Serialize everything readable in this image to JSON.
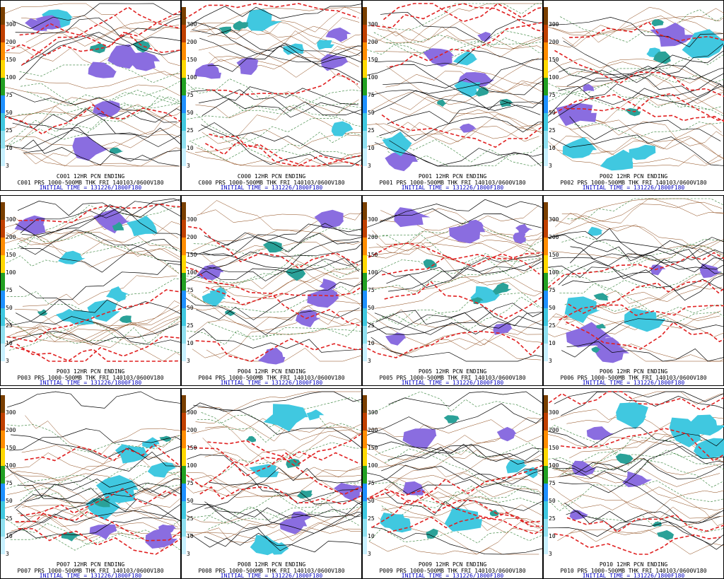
{
  "scale_labels": [
    "300",
    "200",
    "150",
    "100",
    "75",
    "50",
    "25",
    "10",
    "3"
  ],
  "panels": [
    {
      "top": "C001 12HR PCN ENDING",
      "mid": "C001 PRS 1000-500MB THK FRI 140103/0600V180",
      "init": "INITIAL TIME = 131226/1800F180"
    },
    {
      "top": "C000 12HR PCN ENDING",
      "mid": "C000 PRS 1000-500MB THK FRI 140103/0600V180",
      "init": "INITIAL TIME = 131226/1800F180"
    },
    {
      "top": "P001 12HR PCN ENDING",
      "mid": "P001 PRS 1000-500MB THK FRI 140103/0600V180",
      "init": "INITIAL TIME = 131226/1800F180"
    },
    {
      "top": "P002 12HR PCN ENDING",
      "mid": "P002 PRS 1000-500MB THK FRI 140103/0600V180",
      "init": "INITIAL TIME = 131226/1800F180"
    },
    {
      "top": "P003 12HR PCN ENDING",
      "mid": "P003 PRS 1000-500MB THK FRI 140103/0600V180",
      "init": "INITIAL TIME = 131226/1800F180"
    },
    {
      "top": "P004 12HR PCN ENDING",
      "mid": "P004 PRS 1000-500MB THK FRI 140103/0600V180",
      "init": "INITIAL TIME = 131226/1800F180"
    },
    {
      "top": "P005 12HR PCN ENDING",
      "mid": "P005 PRS 1000-500MB THK FRI 140103/0600V180",
      "init": "INITIAL TIME = 131226/1800F180"
    },
    {
      "top": "P006 12HR PCN ENDING",
      "mid": "P006 PRS 1000-500MB THK FRI 140103/0600V180",
      "init": "INITIAL TIME = 131226/1800F180"
    },
    {
      "top": "P007 12HR PCN ENDING",
      "mid": "P007 PRS 1000-500MB THK FRI 140103/0600V180",
      "init": "INITIAL TIME = 131226/1800F180"
    },
    {
      "top": "P008 12HR PCN ENDING",
      "mid": "P008 PRS 1000-500MB THK FRI 140103/0600V180",
      "init": "INITIAL TIME = 131226/1800F180"
    },
    {
      "top": "P009 12HR PCN ENDING",
      "mid": "P009 PRS 1000-500MB THK FRI 140103/0600V180",
      "init": "INITIAL TIME = 131226/1800F180"
    },
    {
      "top": "P010 12HR PCN ENDING",
      "mid": "P010 PRS 1000-500MB THK FRI 140103/0600V180",
      "init": "INITIAL TIME = 131226/1800F180"
    }
  ]
}
